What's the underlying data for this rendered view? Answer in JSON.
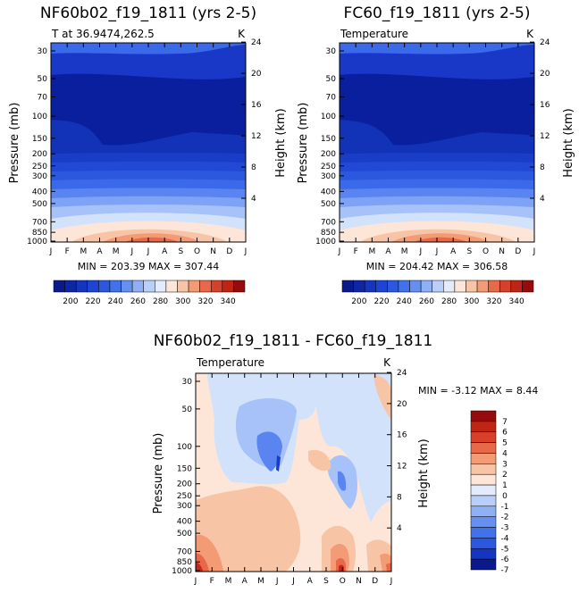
{
  "chart_data": [
    {
      "type": "heatmap",
      "title": "NF60b02_f19_1811 (yrs 2-5)",
      "subtitle_left": "T at 36.9474,262.5",
      "subtitle_right": "K",
      "xlabel": "",
      "ylabel": "Pressure (mb)",
      "ylabel_right": "Height (km)",
      "months": [
        "J",
        "F",
        "M",
        "A",
        "M",
        "J",
        "J",
        "A",
        "S",
        "O",
        "N",
        "D",
        "J"
      ],
      "pressure_ticks": [
        "30",
        "50",
        "70",
        "100",
        "150",
        "200",
        "250",
        "300",
        "400",
        "500",
        "700",
        "850",
        "1000"
      ],
      "height_ticks": [
        "24",
        "20",
        "16",
        "12",
        "8",
        "4"
      ],
      "stats": "MIN = 203.39  MAX = 307.44",
      "min": 203.39,
      "max": 307.44,
      "colorbar_labels": [
        "200",
        "220",
        "240",
        "260",
        "280",
        "300",
        "320",
        "340"
      ]
    },
    {
      "type": "heatmap",
      "title": "FC60_f19_1811 (yrs 2-5)",
      "subtitle_left": "Temperature",
      "subtitle_right": "K",
      "xlabel": "",
      "ylabel": "Pressure (mb)",
      "ylabel_right": "Height (km)",
      "months": [
        "J",
        "F",
        "M",
        "A",
        "M",
        "J",
        "J",
        "A",
        "S",
        "O",
        "N",
        "D",
        "J"
      ],
      "pressure_ticks": [
        "30",
        "50",
        "70",
        "100",
        "150",
        "200",
        "250",
        "300",
        "400",
        "500",
        "700",
        "850",
        "1000"
      ],
      "height_ticks": [
        "24",
        "20",
        "16",
        "12",
        "8",
        "4"
      ],
      "stats": "MIN = 204.42  MAX = 306.58",
      "min": 204.42,
      "max": 306.58,
      "colorbar_labels": [
        "200",
        "220",
        "240",
        "260",
        "280",
        "300",
        "320",
        "340"
      ]
    },
    {
      "type": "heatmap",
      "title": "NF60b02_f19_1811 - FC60_f19_1811",
      "subtitle_left": "Temperature",
      "subtitle_right": "K",
      "ylabel": "Pressure (mb)",
      "ylabel_right": "Height (km)",
      "months": [
        "J",
        "F",
        "M",
        "A",
        "M",
        "J",
        "J",
        "A",
        "S",
        "O",
        "N",
        "D",
        "J"
      ],
      "pressure_ticks": [
        "30",
        "50",
        "100",
        "150",
        "200",
        "250",
        "300",
        "400",
        "500",
        "700",
        "850",
        "1000"
      ],
      "height_ticks": [
        "24",
        "20",
        "16",
        "12",
        "8",
        "4"
      ],
      "stats": "MIN =   -3.12  MAX =    8.44",
      "min": -3.12,
      "max": 8.44,
      "colorbar_labels": [
        "7",
        "6",
        "5",
        "4",
        "3",
        "2",
        "1",
        "0",
        "-1",
        "-2",
        "-3",
        "-4",
        "-5",
        "-6",
        "-7"
      ]
    }
  ]
}
